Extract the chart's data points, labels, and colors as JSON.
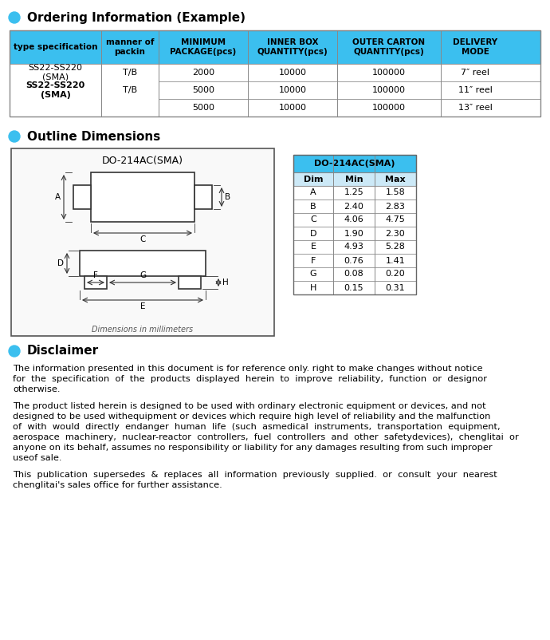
{
  "bg_color": "#ffffff",
  "section1_title": "Ordering Information (Example)",
  "table1_header": [
    "type specification",
    "manner of\npackin",
    "MINIMUM\nPACKAGE(pcs)",
    "INNER BOX\nQUANTITY(pcs)",
    "OUTER CARTON\nQUANTITY(pcs)",
    "DELIVERY\nMODE"
  ],
  "table1_rows": [
    [
      "SS22-SS220\n(SMA)",
      "T/B",
      "2000",
      "10000",
      "100000",
      "7″ reel"
    ],
    [
      "",
      "",
      "5000",
      "10000",
      "100000",
      "11″ reel"
    ],
    [
      "",
      "",
      "5000",
      "10000",
      "100000",
      "13″ reel"
    ]
  ],
  "table1_header_bg": "#3bbfef",
  "table1_header_text": "#000000",
  "table1_row_bg": "#ffffff",
  "table1_border": "#aaaaaa",
  "section2_title": "Outline Dimensions",
  "dim_table_title": "DO-214AC(SMA)",
  "dim_table_header": [
    "Dim",
    "Min",
    "Max"
  ],
  "dim_table_rows": [
    [
      "A",
      "1.25",
      "1.58"
    ],
    [
      "B",
      "2.40",
      "2.83"
    ],
    [
      "C",
      "4.06",
      "4.75"
    ],
    [
      "D",
      "1.90",
      "2.30"
    ],
    [
      "E",
      "4.93",
      "5.28"
    ],
    [
      "F",
      "0.76",
      "1.41"
    ],
    [
      "G",
      "0.08",
      "0.20"
    ],
    [
      "H",
      "0.15",
      "0.31"
    ]
  ],
  "section3_title": "Disclaimer",
  "disclaimer_p1_lines": [
    "The information presented in this document is for reference only. right to make changes without notice",
    "for  the  specification  of  the  products  displayed  herein  to  improve  reliability,  function  or  designor",
    "otherwise."
  ],
  "disclaimer_p2_lines": [
    "The product listed herein is designed to be used with ordinary electronic equipment or devices, and not",
    "designed to be used withequipment or devices which require high level of reliability and the malfunction",
    "of  with  would  directly  endanger  human  life  (such  asmedical  instruments,  transportation  equipment,",
    "aerospace  machinery,  nuclear-reactor  controllers,  fuel  controllers  and  other  safetydevices),  chenglitai  or",
    "anyone on its behalf, assumes no responsibility or liability for any damages resulting from such improper",
    "useof sale."
  ],
  "disclaimer_p3_lines": [
    "This  publication  supersedes  &  replaces  all  information  previously  supplied.  or  consult  your  nearest",
    "chenglitai's sales office for further assistance."
  ],
  "bullet_color": "#3bbfef",
  "section_title_fontsize": 11,
  "body_fontsize": 8.2
}
